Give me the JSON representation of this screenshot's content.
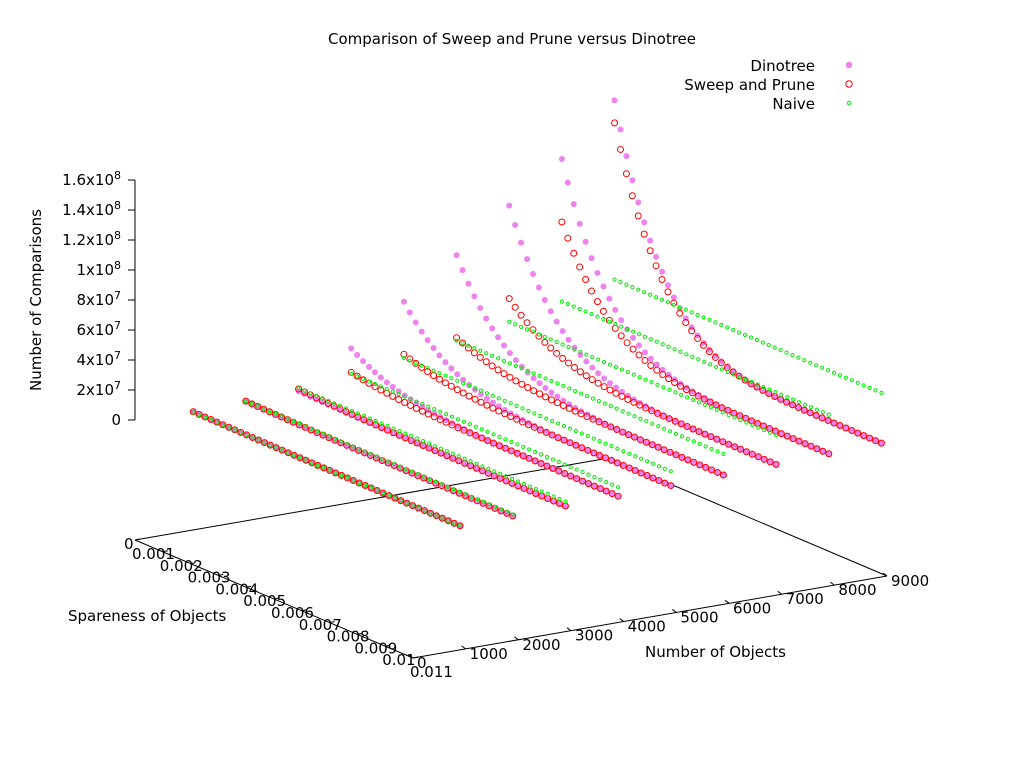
{
  "chart_data": {
    "type": "scatter",
    "subtype": "3d-surface-scatter",
    "title": "Comparison of Sweep and Prune versus Dinotree",
    "xlabel": "Spareness of Objects",
    "ylabel": "Number of Objects",
    "zlabel": "Number of Comparisons",
    "x_ticks": [
      "0.001",
      "0.002",
      "0.003",
      "0.004",
      "0.005",
      "0.006",
      "0.007",
      "0.008",
      "0.009",
      "0.01",
      "0.011"
    ],
    "y_ticks": [
      "0",
      "1000",
      "2000",
      "3000",
      "4000",
      "5000",
      "6000",
      "7000",
      "8000",
      "9000"
    ],
    "z_ticks": [
      "0",
      "2x10^7",
      "4x10^7",
      "6x10^7",
      "8x10^7",
      "1x10^8",
      "1.2x10^8",
      "1.4x10^8",
      "1.6x10^8"
    ],
    "z_ticks_display": [
      {
        "base": "0",
        "exp": ""
      },
      {
        "base": "2x10",
        "exp": "7"
      },
      {
        "base": "4x10",
        "exp": "7"
      },
      {
        "base": "6x10",
        "exp": "7"
      },
      {
        "base": "8x10",
        "exp": "7"
      },
      {
        "base": "1x10",
        "exp": "8"
      },
      {
        "base": "1.2x10",
        "exp": "8"
      },
      {
        "base": "1.4x10",
        "exp": "8"
      },
      {
        "base": "1.6x10",
        "exp": "8"
      }
    ],
    "floor_label": "0",
    "legend_position": "top-right",
    "series": [
      {
        "name": "Dinotree",
        "color": "#ee82ee",
        "marker": "filled-circle",
        "curves": [
          {
            "n_objects": 1000,
            "z_start": 1000000.0,
            "z_end": 300000.0
          },
          {
            "n_objects": 2000,
            "z_start": 1700000.0,
            "z_end": 800000.0
          },
          {
            "n_objects": 3000,
            "z_start": 2500000.0,
            "z_end": 1200000.0
          },
          {
            "n_objects": 4000,
            "z_start": 25000000.0,
            "z_end": 2000000.0
          },
          {
            "n_objects": 5000,
            "z_start": 50000000.0,
            "z_end": 3000000.0
          },
          {
            "n_objects": 6000,
            "z_start": 75000000.0,
            "z_end": 4000000.0
          },
          {
            "n_objects": 7000,
            "z_start": 102000000.0,
            "z_end": 5000000.0
          },
          {
            "n_objects": 8000,
            "z_start": 127000000.0,
            "z_end": 6000000.0
          },
          {
            "n_objects": 9000,
            "z_start": 160000000.0,
            "z_end": 7000000.0
          }
        ]
      },
      {
        "name": "Sweep and Prune",
        "color": "#ff0000",
        "marker": "open-circle",
        "curves": [
          {
            "n_objects": 1000,
            "z_start": 1000000.0,
            "z_end": 500000.0
          },
          {
            "n_objects": 2000,
            "z_start": 2000000.0,
            "z_end": 1000000.0
          },
          {
            "n_objects": 3000,
            "z_start": 4000000.0,
            "z_end": 1500000.0
          },
          {
            "n_objects": 4000,
            "z_start": 9000000.0,
            "z_end": 2000000.0
          },
          {
            "n_objects": 5000,
            "z_start": 15000000.0,
            "z_end": 3000000.0
          },
          {
            "n_objects": 6000,
            "z_start": 20000000.0,
            "z_end": 4000000.0
          },
          {
            "n_objects": 7000,
            "z_start": 40000000.0,
            "z_end": 5000000.0
          },
          {
            "n_objects": 8000,
            "z_start": 85000000.0,
            "z_end": 6000000.0
          },
          {
            "n_objects": 9000,
            "z_start": 145000000.0,
            "z_end": 7000000.0
          }
        ]
      },
      {
        "name": "Naive",
        "color": "#00ee00",
        "marker": "small-open-circle",
        "curves": [
          {
            "n_objects": 1000,
            "z_start": 500000.0,
            "z_end": 500000.0
          },
          {
            "n_objects": 2000,
            "z_start": 2000000.0,
            "z_end": 2000000.0
          },
          {
            "n_objects": 3000,
            "z_start": 4500000.0,
            "z_end": 4500000.0
          },
          {
            "n_objects": 4000,
            "z_start": 8000000.0,
            "z_end": 8000000.0
          },
          {
            "n_objects": 5000,
            "z_start": 12500000.0,
            "z_end": 12500000.0
          },
          {
            "n_objects": 6000,
            "z_start": 18000000.0,
            "z_end": 18000000.0
          },
          {
            "n_objects": 7000,
            "z_start": 24500000.0,
            "z_end": 24500000.0
          },
          {
            "n_objects": 8000,
            "z_start": 32000000.0,
            "z_end": 32000000.0
          },
          {
            "n_objects": 9000,
            "z_start": 40500000.0,
            "z_end": 40500000.0
          }
        ]
      }
    ]
  }
}
